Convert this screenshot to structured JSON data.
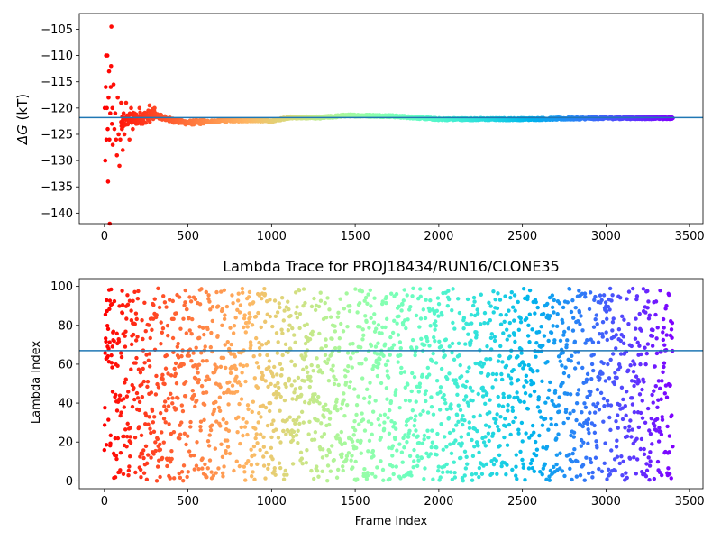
{
  "chart_data": [
    {
      "type": "scatter",
      "title": "",
      "xlabel": "",
      "ylabel_symbol": "ΔG",
      "ylabel_unit": " (kT)",
      "xlim": [
        -150,
        3580
      ],
      "ylim": [
        -142,
        -102
      ],
      "xticks": [
        0,
        500,
        1000,
        1500,
        2000,
        2500,
        3000,
        3500
      ],
      "yticks": [
        -140,
        -135,
        -130,
        -125,
        -120,
        -115,
        -110,
        -105
      ],
      "hline": -121.8,
      "hline_color": "#1f77b4",
      "grid": false,
      "colormap": "rainbow",
      "trend": [
        {
          "x": 0,
          "y": -121
        },
        {
          "x": 50,
          "y": -120
        },
        {
          "x": 100,
          "y": -123
        },
        {
          "x": 150,
          "y": -122
        },
        {
          "x": 200,
          "y": -122
        },
        {
          "x": 300,
          "y": -121.3
        },
        {
          "x": 400,
          "y": -122.3
        },
        {
          "x": 500,
          "y": -122.8
        },
        {
          "x": 700,
          "y": -122.4
        },
        {
          "x": 900,
          "y": -122.3
        },
        {
          "x": 1000,
          "y": -122.5
        },
        {
          "x": 1100,
          "y": -121.8
        },
        {
          "x": 1300,
          "y": -121.8
        },
        {
          "x": 1450,
          "y": -121.4
        },
        {
          "x": 1700,
          "y": -121.5
        },
        {
          "x": 2000,
          "y": -122.1
        },
        {
          "x": 2500,
          "y": -122.1
        },
        {
          "x": 3000,
          "y": -121.9
        },
        {
          "x": 3400,
          "y": -121.9
        }
      ],
      "early_points": [
        {
          "x": 2,
          "y": -120
        },
        {
          "x": 5,
          "y": -130
        },
        {
          "x": 8,
          "y": -116
        },
        {
          "x": 10,
          "y": -110
        },
        {
          "x": 12,
          "y": -126
        },
        {
          "x": 15,
          "y": -120
        },
        {
          "x": 18,
          "y": -110
        },
        {
          "x": 20,
          "y": -124
        },
        {
          "x": 22,
          "y": -134
        },
        {
          "x": 25,
          "y": -118
        },
        {
          "x": 28,
          "y": -113
        },
        {
          "x": 30,
          "y": -126
        },
        {
          "x": 32,
          "y": -142
        },
        {
          "x": 35,
          "y": -121
        },
        {
          "x": 38,
          "y": -116
        },
        {
          "x": 40,
          "y": -112
        },
        {
          "x": 42,
          "y": -104.5
        },
        {
          "x": 45,
          "y": -123
        },
        {
          "x": 48,
          "y": -120
        },
        {
          "x": 50,
          "y": -127
        },
        {
          "x": 55,
          "y": -115.5
        },
        {
          "x": 60,
          "y": -124
        },
        {
          "x": 65,
          "y": -121
        },
        {
          "x": 70,
          "y": -126
        },
        {
          "x": 75,
          "y": -129
        },
        {
          "x": 80,
          "y": -118
        },
        {
          "x": 85,
          "y": -125
        },
        {
          "x": 90,
          "y": -131
        },
        {
          "x": 95,
          "y": -126
        },
        {
          "x": 100,
          "y": -119
        },
        {
          "x": 105,
          "y": -124
        },
        {
          "x": 110,
          "y": -128
        },
        {
          "x": 115,
          "y": -121
        },
        {
          "x": 120,
          "y": -125
        },
        {
          "x": 130,
          "y": -119
        },
        {
          "x": 140,
          "y": -123
        },
        {
          "x": 150,
          "y": -126
        },
        {
          "x": 160,
          "y": -120
        },
        {
          "x": 170,
          "y": -124
        },
        {
          "x": 180,
          "y": -121
        },
        {
          "x": 190,
          "y": -123
        },
        {
          "x": 200,
          "y": -122
        },
        {
          "x": 210,
          "y": -120
        },
        {
          "x": 230,
          "y": -123
        },
        {
          "x": 250,
          "y": -121
        },
        {
          "x": 270,
          "y": -119.5
        },
        {
          "x": 290,
          "y": -121.5
        },
        {
          "x": 300,
          "y": -120
        }
      ],
      "n_frames": 3400
    },
    {
      "type": "scatter",
      "title": "Lambda Trace for PROJ18434/RUN16/CLONE35",
      "xlabel": "Frame Index",
      "ylabel": "Lambda Index",
      "xlim": [
        -150,
        3580
      ],
      "ylim": [
        -4,
        104
      ],
      "xticks": [
        0,
        500,
        1000,
        1500,
        2000,
        2500,
        3000,
        3500
      ],
      "yticks": [
        0,
        20,
        40,
        60,
        80,
        100
      ],
      "hline": 67,
      "hline_color": "#1f77b4",
      "grid": false,
      "colormap": "rainbow",
      "y_range": [
        0,
        99
      ],
      "n_frames": 3400,
      "frame_step": 1.5
    }
  ]
}
